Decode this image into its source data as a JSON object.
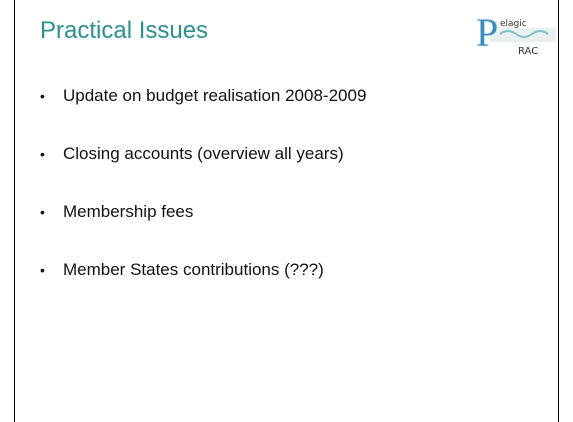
{
  "header": {
    "title": "Practical Issues",
    "logo": {
      "mark": "P",
      "top": "elagic",
      "bottom": "RAC"
    }
  },
  "bullets": [
    "Update on budget realisation 2008-2009",
    "Closing accounts (overview all years)",
    "Membership fees",
    "Member States contributions (???)"
  ]
}
